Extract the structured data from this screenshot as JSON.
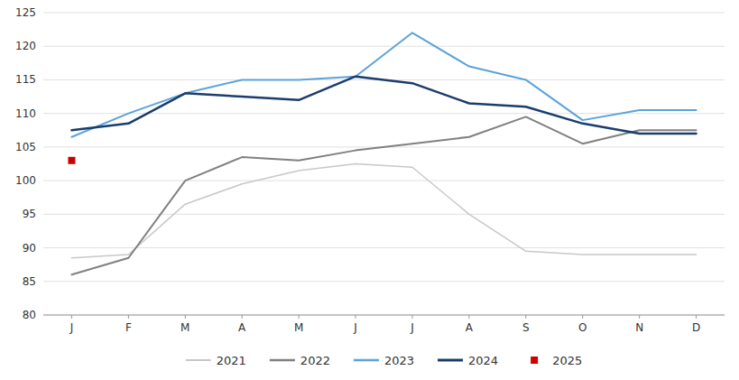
{
  "chart_data": {
    "type": "line",
    "categories": [
      "J",
      "F",
      "M",
      "A",
      "M",
      "J",
      "J",
      "A",
      "S",
      "O",
      "N",
      "D"
    ],
    "series": [
      {
        "name": "2021",
        "color": "#c8c8c8",
        "line_style": "solid",
        "values": [
          88.5,
          89.0,
          96.5,
          99.5,
          101.5,
          102.5,
          102.0,
          95.0,
          89.5,
          89.0,
          89.0,
          89.0
        ]
      },
      {
        "name": "2022",
        "color": "#808080",
        "line_style": "solid",
        "values": [
          86.0,
          88.5,
          100.0,
          103.5,
          103.0,
          104.5,
          105.5,
          106.5,
          109.5,
          105.5,
          107.5,
          107.5
        ]
      },
      {
        "name": "2023",
        "color": "#5ba3d9",
        "line_style": "solid",
        "values": [
          106.5,
          110.0,
          113.0,
          115.0,
          115.0,
          115.5,
          122.0,
          117.0,
          115.0,
          109.0,
          110.5,
          110.5
        ]
      },
      {
        "name": "2024",
        "color": "#1a3d6e",
        "line_style": "solid",
        "values": [
          107.5,
          108.5,
          113.0,
          112.5,
          112.0,
          115.5,
          114.5,
          111.5,
          111.0,
          108.5,
          107.0,
          107.0
        ]
      },
      {
        "name": "2025",
        "color": "#cc0000",
        "line_style": "none",
        "marker": "square",
        "values": [
          103.0,
          null,
          null,
          null,
          null,
          null,
          null,
          null,
          null,
          null,
          null,
          null
        ]
      }
    ],
    "ylim": [
      80,
      125
    ],
    "yticks": [
      80,
      85,
      90,
      95,
      100,
      105,
      110,
      115,
      120,
      125
    ],
    "grid": true,
    "legend": "bottom"
  }
}
